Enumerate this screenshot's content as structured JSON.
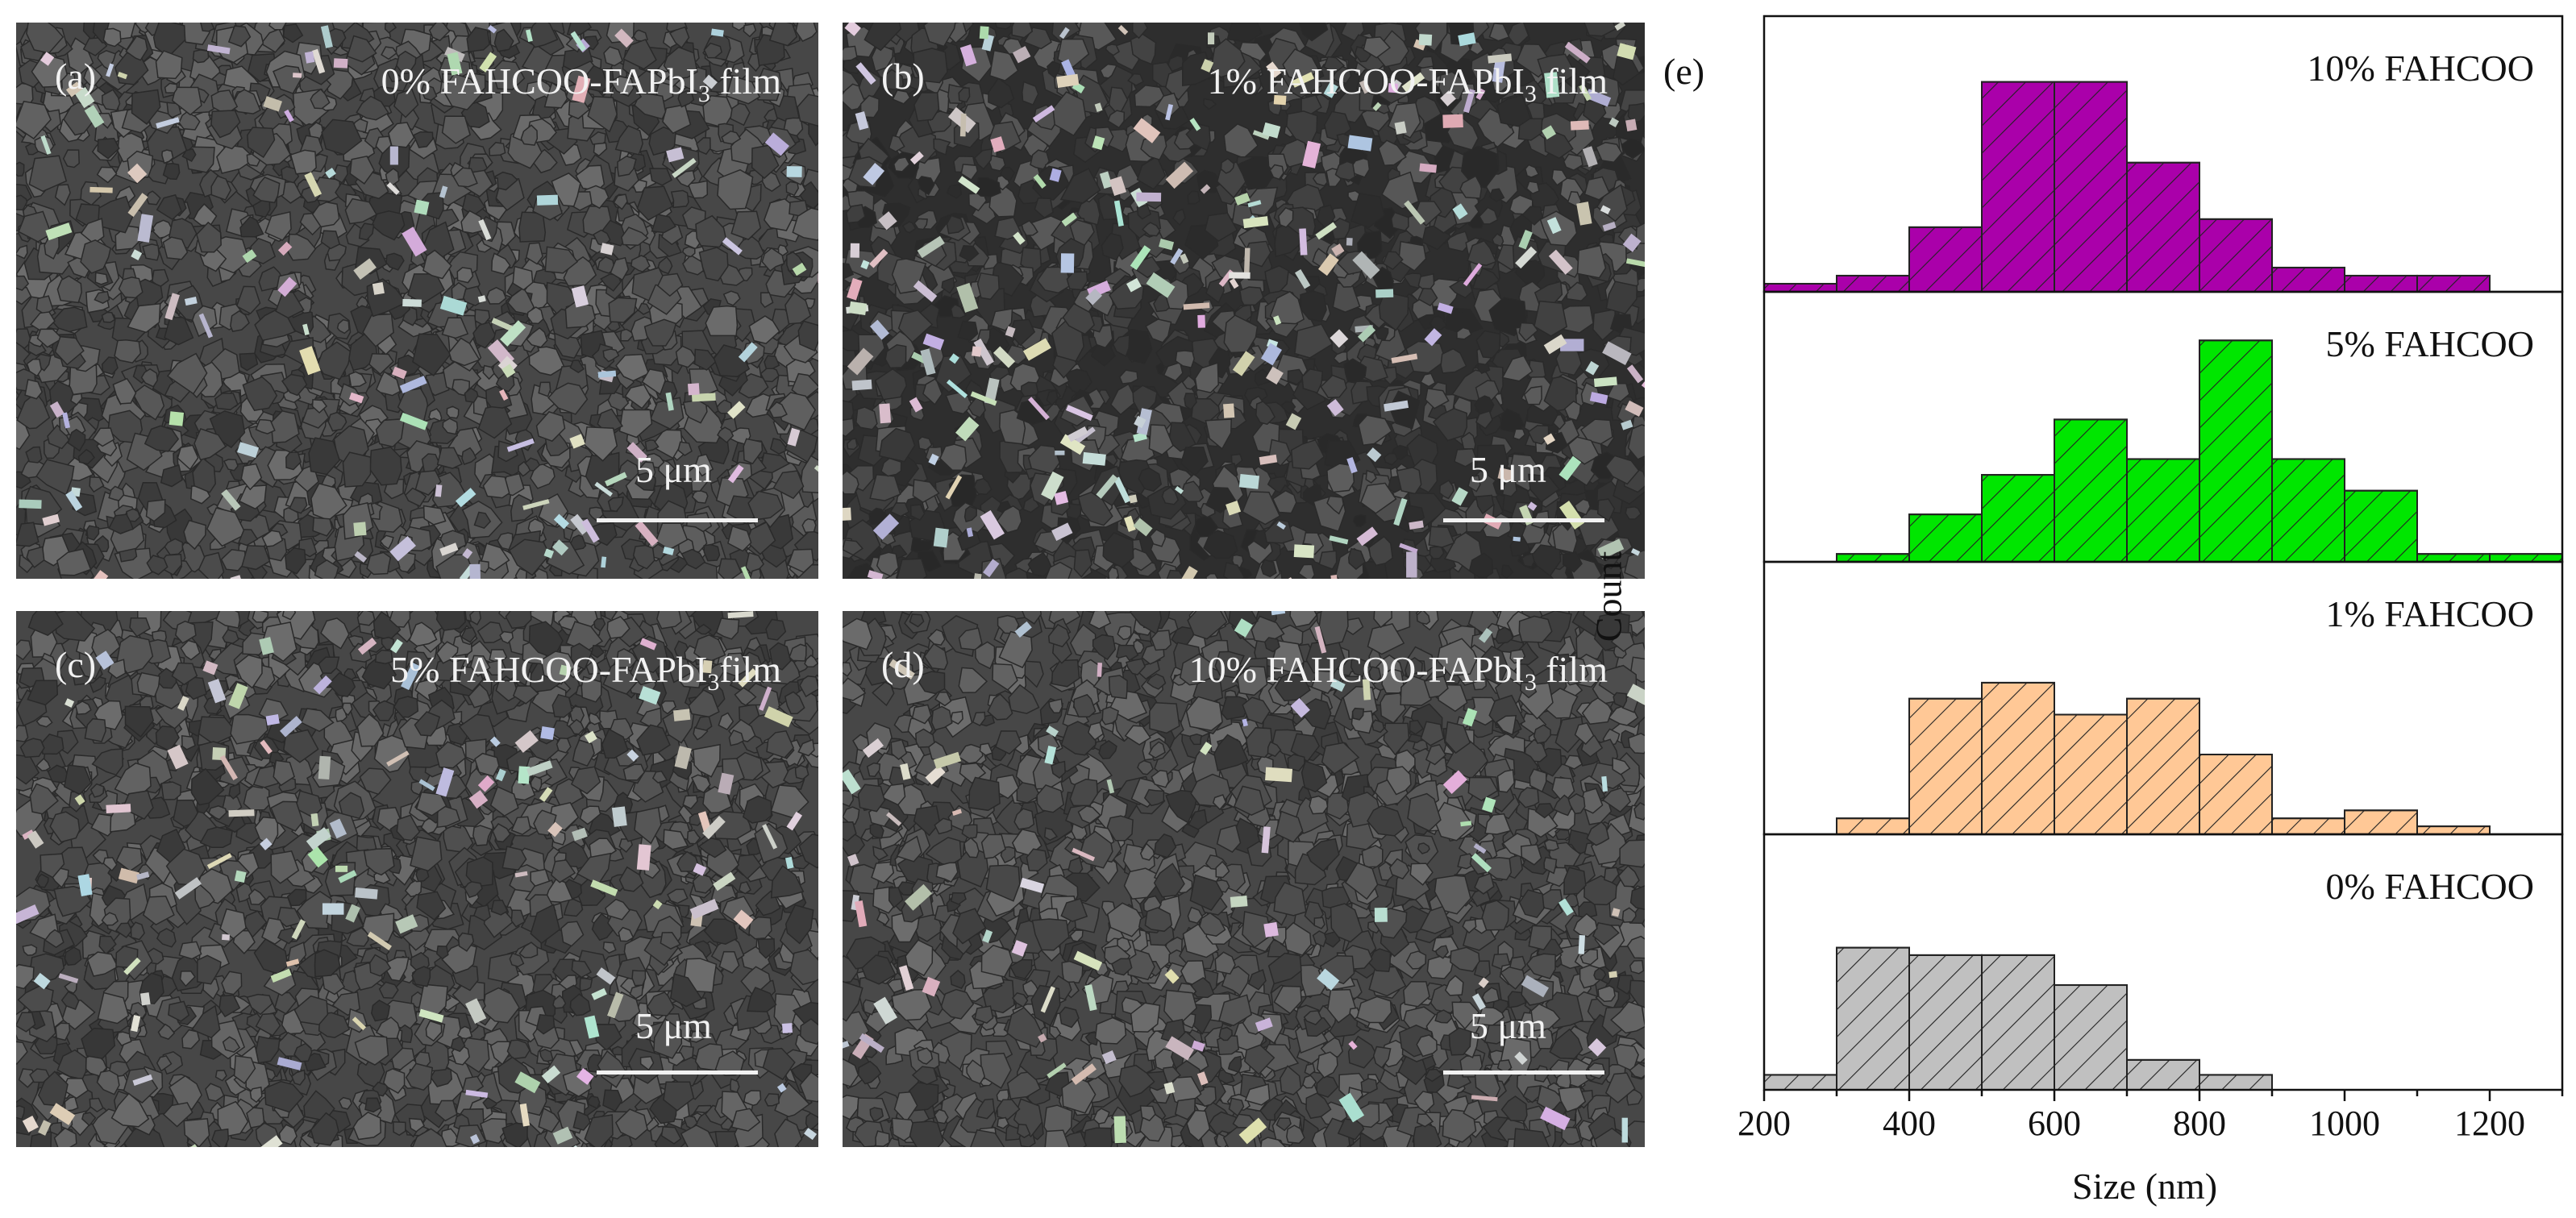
{
  "panels": [
    {
      "letter": "(a)",
      "title_parts": [
        "0% FAHCOO-FAPbI",
        "3",
        " film"
      ],
      "scale": "5 μm"
    },
    {
      "letter": "(b)",
      "title_parts": [
        "1% FAHCOO-FAPbI",
        "3",
        " film"
      ],
      "scale": "5 μm"
    },
    {
      "letter": "(c)",
      "title_parts": [
        "5% FAHCOO-FAPbI",
        "3",
        "film"
      ],
      "scale": "5 μm"
    },
    {
      "letter": "(d)",
      "title_parts": [
        "10% FAHCOO-FAPbI",
        "3",
        " film"
      ],
      "scale": "5 μm"
    }
  ],
  "chart_data": {
    "type": "bar",
    "panel_label": "(e)",
    "xlabel": "Size (nm)",
    "ylabel": "Count",
    "xlim": [
      200,
      1300
    ],
    "xticks": [
      "200",
      "400",
      "600",
      "800",
      "1000",
      "1200"
    ],
    "bin_edges": [
      200,
      300,
      400,
      500,
      600,
      700,
      800,
      900,
      1000,
      1100,
      1200,
      1300
    ],
    "series": [
      {
        "name": "10% FAHCOO",
        "color": "#aa00aa",
        "values": [
          1,
          2,
          8,
          26,
          26,
          16,
          9,
          3,
          2,
          2,
          0
        ]
      },
      {
        "name": "5% FAHCOO",
        "color": "#00e600",
        "values": [
          0,
          1,
          6,
          11,
          18,
          13,
          28,
          13,
          9,
          1,
          1
        ]
      },
      {
        "name": "1% FAHCOO",
        "color": "#ffc896",
        "values": [
          0,
          2,
          17,
          19,
          15,
          17,
          10,
          2,
          3,
          1,
          0
        ]
      },
      {
        "name": "0% FAHCOO",
        "color": "#c0c0c0",
        "values": [
          2,
          19,
          18,
          18,
          14,
          4,
          2,
          0,
          0,
          0,
          0
        ]
      }
    ]
  }
}
